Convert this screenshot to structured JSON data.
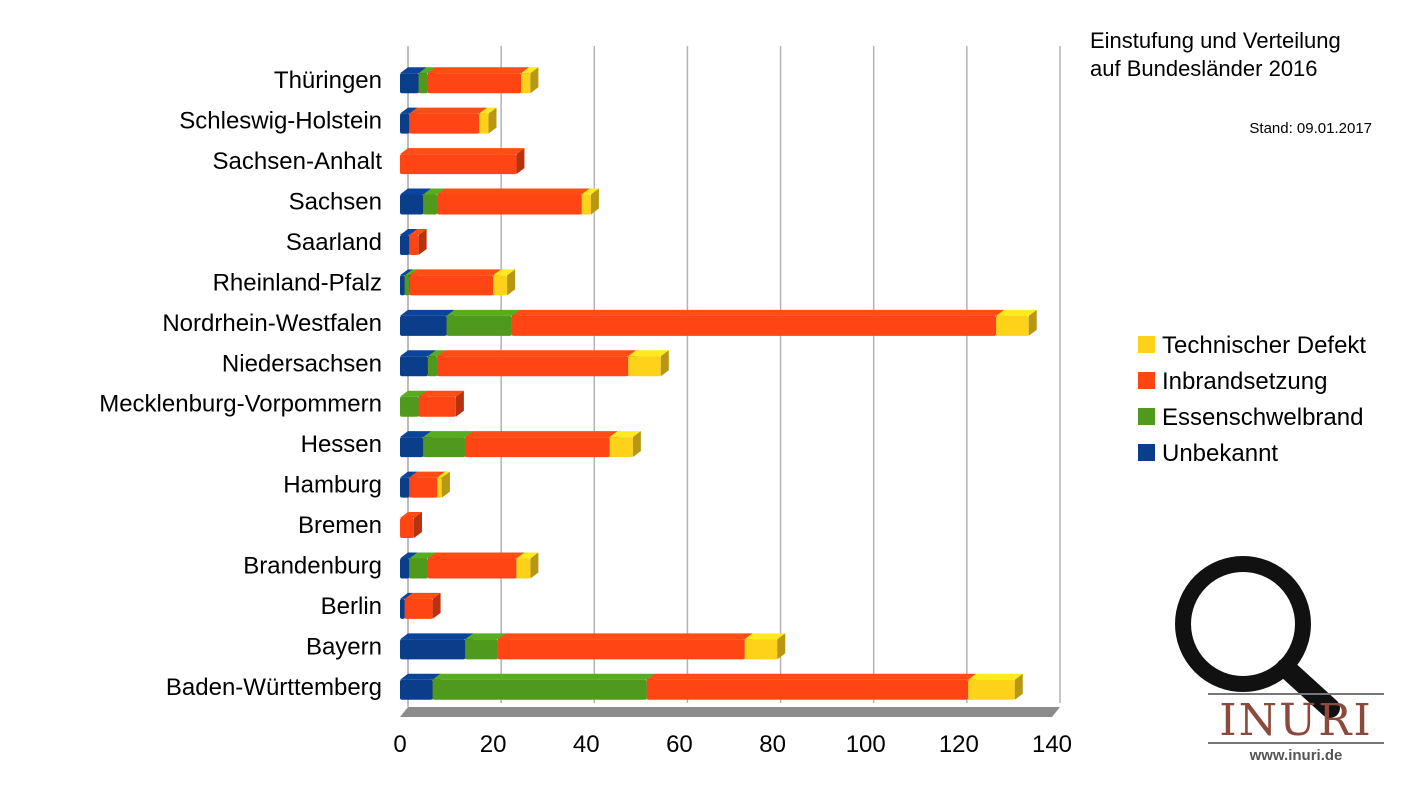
{
  "chart_data": {
    "type": "bar",
    "orientation": "horizontal",
    "stacked": true,
    "title": "Einstufung und Verteilung",
    "subtitle": "auf Bundesländer 2016",
    "note": "Stand: 09.01.2017",
    "categories": [
      "Thüringen",
      "Schleswig-Holstein",
      "Sachsen-Anhalt",
      "Sachsen",
      "Saarland",
      "Rheinland-Pfalz",
      "Nordrhein-Westfalen",
      "Niedersachsen",
      "Mecklenburg-Vorpommern",
      "Hessen",
      "Hamburg",
      "Bremen",
      "Brandenburg",
      "Berlin",
      "Bayern",
      "Baden-Württemberg"
    ],
    "series": [
      {
        "name": "Unbekannt",
        "color": "#0a3d8a",
        "values": [
          4,
          2,
          0,
          5,
          2,
          1,
          10,
          6,
          0,
          5,
          2,
          0,
          2,
          1,
          14,
          7
        ]
      },
      {
        "name": "Essenschwelbrand",
        "color": "#4f9a1c",
        "values": [
          2,
          0,
          0,
          3,
          0,
          1,
          14,
          2,
          4,
          9,
          0,
          0,
          4,
          0,
          7,
          46
        ]
      },
      {
        "name": "Inbrandsetzung",
        "color": "#ff4513",
        "values": [
          20,
          15,
          25,
          31,
          2,
          18,
          104,
          41,
          8,
          31,
          6,
          3,
          19,
          6,
          53,
          69
        ]
      },
      {
        "name": "Technischer Defekt",
        "color": "#ffd21a",
        "values": [
          2,
          2,
          0,
          2,
          0,
          3,
          7,
          7,
          0,
          5,
          1,
          0,
          3,
          0,
          7,
          10
        ]
      }
    ],
    "xlim": [
      0,
      140
    ],
    "xticks": [
      "0",
      "20",
      "40",
      "60",
      "80",
      "100",
      "120",
      "140"
    ],
    "grid": true,
    "legend_position": "right",
    "legend_order": [
      "Technischer Defekt",
      "Inbrandsetzung",
      "Essenschwelbrand",
      "Unbekannt"
    ]
  },
  "logo": {
    "text": "INURI",
    "url": "www.inuri.de",
    "icon": "magnifier-icon"
  }
}
